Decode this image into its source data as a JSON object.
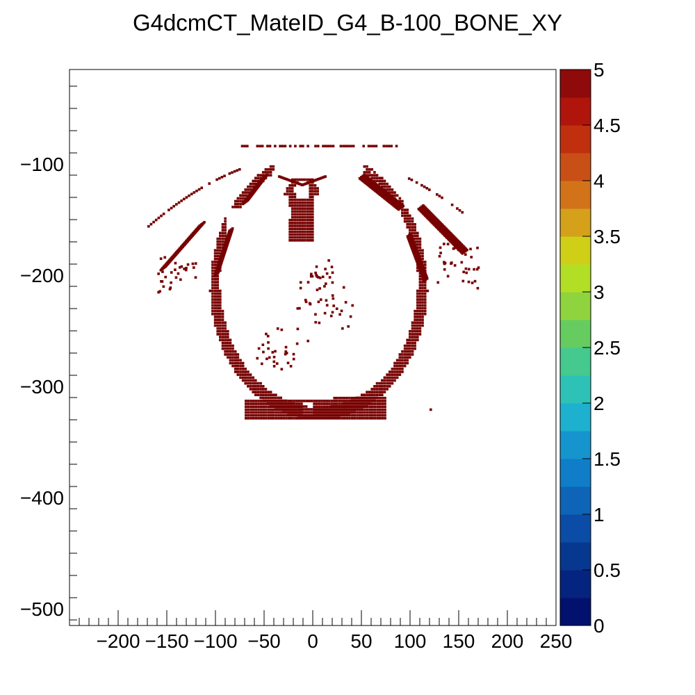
{
  "chart_data": {
    "type": "heatmap",
    "title": "G4dcmCT_MateID_G4_B-100_BONE_XY",
    "xlabel": "",
    "ylabel": "",
    "xlim": [
      -250,
      250
    ],
    "ylim": [
      -515,
      -15
    ],
    "x_ticks": [
      -200,
      -150,
      -100,
      -50,
      0,
      50,
      100,
      150,
      200,
      250
    ],
    "x_tick_labels": [
      "−200",
      "−150",
      "−100",
      "−50",
      "0",
      "50",
      "100",
      "150",
      "200",
      "250"
    ],
    "y_ticks": [
      -100,
      -200,
      -300,
      -400,
      -500
    ],
    "y_tick_labels": [
      "−100",
      "−200",
      "−300",
      "−400",
      "−500"
    ],
    "z_range": [
      0,
      5
    ],
    "z_ticks": [
      0,
      0.5,
      1,
      1.5,
      2,
      2.5,
      3,
      3.5,
      4,
      4.5,
      5
    ],
    "z_tick_labels": [
      "0",
      "0.5",
      "1",
      "1.5",
      "2",
      "2.5",
      "3",
      "3.5",
      "4",
      "4.5",
      "5"
    ],
    "palette": [
      "#03116e",
      "#05247f",
      "#07388f",
      "#0b4da6",
      "#0e64b7",
      "#0f7dc8",
      "#1694ce",
      "#1eb0cf",
      "#2ec2b7",
      "#45c98e",
      "#66cc60",
      "#8fd43e",
      "#b2de26",
      "#cfcf17",
      "#d5a01a",
      "#d2731a",
      "#c85016",
      "#c0300f",
      "#b0150b",
      "#8f0a0a",
      "#6f0000"
    ],
    "bone_value": 5,
    "bone_color": "#770000",
    "grid": false,
    "legend": "color scale right",
    "description_regions": {
      "outer_ring": {
        "cx": 5,
        "cy": -210,
        "rx": 112,
        "ry": 122,
        "thickness": 11
      },
      "vertebra_body": {
        "cx": -12,
        "cy": -160,
        "r": 14
      },
      "spinous_process": {
        "x": [
          -25,
          0
        ],
        "y": [
          -110,
          -130
        ]
      },
      "left_scapula": {
        "x": [
          -155,
          -110
        ],
        "y": [
          -160,
          -200
        ]
      },
      "right_scapula": {
        "x": [
          100,
          160
        ],
        "y": [
          -150,
          -200
        ]
      },
      "sternum": {
        "x": [
          -30,
          50
        ],
        "y": [
          -312,
          -330
        ]
      }
    }
  }
}
